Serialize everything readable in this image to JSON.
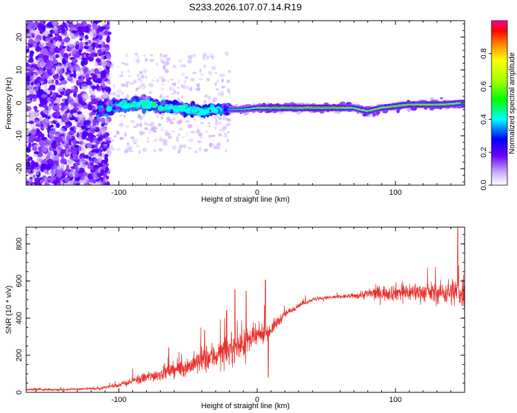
{
  "title": "S233.2026.107.07.14.R19",
  "chart_data": [
    {
      "type": "heatmap",
      "name": "spectrogram",
      "xlabel": "Height of straight line (km)",
      "ylabel": "Frequency (Hz)",
      "xlim": [
        -167,
        150
      ],
      "ylim": [
        -25,
        25
      ],
      "xticks": [
        -100,
        0,
        100
      ],
      "xtick_labels": [
        "-100",
        "0",
        "100"
      ],
      "yticks": [
        -20,
        -10,
        0,
        10,
        20
      ],
      "ytick_labels": [
        "-20",
        "-10",
        "0",
        "10",
        "20"
      ],
      "colorbar": {
        "label": "Normalized spectral amplitude",
        "range": [
          0,
          1
        ],
        "ticks": [
          0.0,
          0.2,
          0.4,
          0.6,
          0.8
        ],
        "tick_labels": [
          "0.0",
          "0.2",
          "0.4",
          "0.6",
          "0.8"
        ]
      },
      "ridge": {
        "description": "dominant frequency track",
        "points": [
          {
            "x": -115,
            "y": -2.0,
            "amp": 0.2
          },
          {
            "x": -100,
            "y": -1.0,
            "amp": 0.25
          },
          {
            "x": -85,
            "y": 0.0,
            "amp": 0.35
          },
          {
            "x": -70,
            "y": -1.0,
            "amp": 0.3
          },
          {
            "x": -55,
            "y": -1.5,
            "amp": 0.3
          },
          {
            "x": -40,
            "y": -2.5,
            "amp": 0.3
          },
          {
            "x": -30,
            "y": -2.0,
            "amp": 0.35
          },
          {
            "x": -20,
            "y": -2.0,
            "amp": 0.5
          },
          {
            "x": -10,
            "y": -2.0,
            "amp": 0.6
          },
          {
            "x": 0,
            "y": -1.5,
            "amp": 0.7
          },
          {
            "x": 10,
            "y": -1.5,
            "amp": 0.9
          },
          {
            "x": 30,
            "y": -1.5,
            "amp": 0.95
          },
          {
            "x": 50,
            "y": -1.5,
            "amp": 0.95
          },
          {
            "x": 60,
            "y": -1.5,
            "amp": 0.9
          },
          {
            "x": 70,
            "y": -1.5,
            "amp": 0.7
          },
          {
            "x": 80,
            "y": -2.5,
            "amp": 0.85
          },
          {
            "x": 90,
            "y": -1.5,
            "amp": 0.8
          },
          {
            "x": 100,
            "y": -1.0,
            "amp": 0.85
          },
          {
            "x": 110,
            "y": -0.5,
            "amp": 0.85
          },
          {
            "x": 120,
            "y": -0.5,
            "amp": 0.85
          },
          {
            "x": 135,
            "y": -0.5,
            "amp": 0.85
          },
          {
            "x": 148,
            "y": 0.0,
            "amp": 0.8
          }
        ]
      }
    },
    {
      "type": "line",
      "name": "snr",
      "xlabel": "Height of straight line (km)",
      "ylabel": "SNR (10 * v/v)",
      "xlim": [
        -167,
        150
      ],
      "ylim": [
        0,
        890
      ],
      "xticks": [
        -100,
        0,
        100
      ],
      "xtick_labels": [
        "-100",
        "0",
        "100"
      ],
      "yticks": [
        0,
        200,
        400,
        600,
        800
      ],
      "ytick_labels": [
        "0",
        "200",
        "400",
        "600",
        "800"
      ],
      "color": "#e8302a",
      "envelope": {
        "x": [
          -167,
          -140,
          -115,
          -100,
          -90,
          -80,
          -70,
          -60,
          -50,
          -40,
          -30,
          -20,
          -10,
          0,
          5,
          10,
          15,
          20,
          30,
          40,
          50,
          60,
          70,
          80,
          90,
          100,
          110,
          120,
          130,
          140,
          150
        ],
        "mean": [
          15,
          15,
          20,
          40,
          60,
          80,
          100,
          120,
          140,
          170,
          200,
          230,
          260,
          300,
          320,
          340,
          380,
          420,
          470,
          500,
          510,
          515,
          520,
          530,
          535,
          540,
          540,
          540,
          535,
          540,
          545
        ],
        "spread": [
          12,
          12,
          15,
          25,
          40,
          60,
          70,
          80,
          100,
          140,
          150,
          160,
          140,
          120,
          100,
          80,
          60,
          40,
          25,
          20,
          20,
          20,
          25,
          60,
          80,
          90,
          100,
          100,
          110,
          140,
          200
        ]
      },
      "peaks": [
        {
          "x": -64,
          "y": 240
        },
        {
          "x": -38,
          "y": 335
        },
        {
          "x": -16,
          "y": 555
        },
        {
          "x": -8,
          "y": 545
        },
        {
          "x": 6,
          "y": 605
        },
        {
          "x": 8,
          "y": 80
        },
        {
          "x": 145,
          "y": 890
        }
      ]
    }
  ]
}
